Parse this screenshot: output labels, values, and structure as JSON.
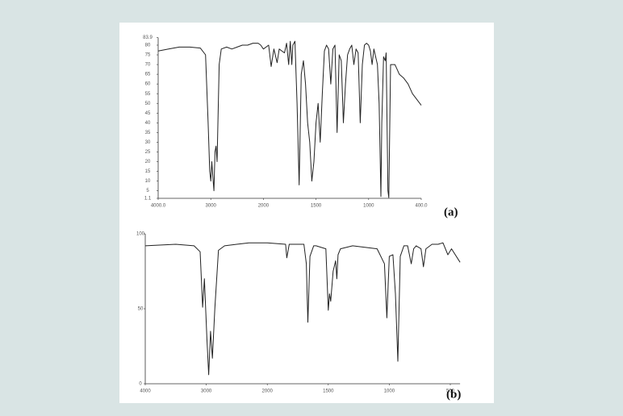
{
  "chart_data": [
    {
      "type": "line",
      "annotation": "(a)",
      "color": "#222222",
      "xlim": [
        4000,
        400
      ],
      "xticks": [
        {
          "value": 4000,
          "label": "4000.0"
        },
        3000,
        2000,
        1500,
        1000,
        {
          "value": 400,
          "label": "400.0"
        }
      ],
      "ylim": [
        1.1,
        83.9
      ],
      "yticks": [
        83.9,
        80,
        75,
        70,
        65,
        60,
        55,
        50,
        45,
        40,
        35,
        30,
        25,
        20,
        15,
        10,
        5,
        1.1
      ],
      "x": [
        4000,
        3800,
        3600,
        3400,
        3200,
        3100,
        3050,
        3020,
        3000,
        2980,
        2960,
        2940,
        2920,
        2900,
        2880,
        2860,
        2840,
        2800,
        2700,
        2600,
        2500,
        2400,
        2300,
        2200,
        2100,
        2050,
        2000,
        1950,
        1926,
        1900,
        1870,
        1850,
        1800,
        1780,
        1760,
        1745,
        1730,
        1720,
        1700,
        1680,
        1660,
        1640,
        1620,
        1600,
        1580,
        1560,
        1540,
        1520,
        1500,
        1480,
        1460,
        1440,
        1420,
        1400,
        1380,
        1360,
        1340,
        1320,
        1300,
        1280,
        1260,
        1240,
        1220,
        1200,
        1180,
        1160,
        1140,
        1120,
        1100,
        1080,
        1060,
        1040,
        1020,
        1000,
        980,
        960,
        940,
        900,
        880,
        860,
        850,
        830,
        810,
        800,
        780,
        770,
        750,
        700,
        650,
        600,
        550,
        500,
        450,
        400
      ],
      "values": [
        77,
        78,
        79,
        79,
        78.5,
        75,
        40,
        15,
        10,
        20,
        12,
        5,
        25,
        28,
        20,
        45,
        70,
        78,
        79,
        78,
        79,
        80,
        80,
        81,
        81,
        80,
        78,
        80,
        69,
        78,
        71,
        78,
        76,
        81,
        70,
        82,
        70,
        80,
        82,
        50,
        8,
        65,
        72,
        60,
        40,
        30,
        10,
        20,
        40,
        50,
        30,
        55,
        77,
        80,
        78,
        60,
        78,
        80,
        35,
        75,
        72,
        40,
        60,
        75,
        78,
        80,
        70,
        78,
        76,
        40,
        70,
        80,
        81,
        80,
        77,
        70,
        78,
        70,
        50,
        2,
        40,
        74,
        72,
        76,
        5,
        1.5,
        70,
        70,
        65,
        63,
        60,
        55,
        52,
        49
      ]
    },
    {
      "type": "line",
      "annotation": "(b)",
      "color": "#222222",
      "xlim": [
        4000,
        420
      ],
      "xticks": [
        4000,
        3000,
        2000,
        1500,
        1000,
        500
      ],
      "ylim": [
        0,
        100
      ],
      "yticks": [
        0,
        50,
        100
      ],
      "x": [
        4000,
        3500,
        3200,
        3100,
        3060,
        3030,
        2990,
        2960,
        2930,
        2900,
        2860,
        2800,
        2700,
        2500,
        2300,
        2000,
        1850,
        1840,
        1820,
        1700,
        1680,
        1667,
        1650,
        1620,
        1600,
        1520,
        1500,
        1490,
        1480,
        1460,
        1440,
        1430,
        1420,
        1400,
        1300,
        1100,
        1040,
        1020,
        1000,
        970,
        950,
        930,
        910,
        880,
        850,
        820,
        800,
        780,
        740,
        720,
        700,
        650,
        600,
        560,
        520,
        490,
        420
      ],
      "values": [
        92,
        93,
        92,
        88,
        51,
        70,
        30,
        6,
        35,
        17,
        50,
        89,
        92,
        93,
        94,
        94,
        93,
        84,
        93,
        93,
        80,
        41,
        85,
        92,
        92,
        90,
        49,
        60,
        55,
        75,
        82,
        70,
        86,
        90,
        92,
        90,
        80,
        44,
        85,
        86,
        60,
        15,
        85,
        92,
        92,
        80,
        90,
        92,
        90,
        78,
        90,
        93,
        93,
        94,
        86,
        90,
        81
      ]
    }
  ]
}
